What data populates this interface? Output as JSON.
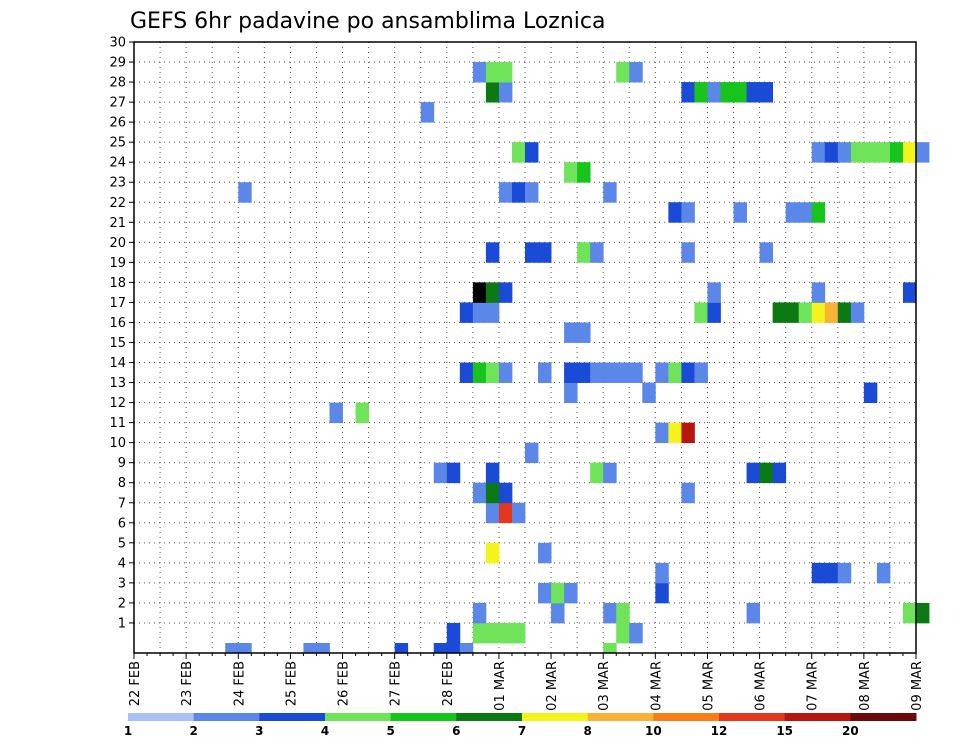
{
  "chart_data": {
    "type": "heatmap",
    "title": "GEFS 6hr padavine po ansamblima Loznica",
    "xlabel": "",
    "ylabel": "",
    "x_tick_labels": [
      "22 FEB",
      "23 FEB",
      "24 FEB",
      "25 FEB",
      "26 FEB",
      "27 FEB",
      "28 FEB",
      "01 MAR",
      "02 MAR",
      "03 MAR",
      "04 MAR",
      "05 MAR",
      "06 MAR",
      "07 MAR",
      "08 MAR",
      "09 MAR"
    ],
    "y_tick_labels": [
      "1",
      "2",
      "3",
      "4",
      "5",
      "6",
      "7",
      "8",
      "9",
      "10",
      "11",
      "12",
      "13",
      "14",
      "15",
      "16",
      "17",
      "18",
      "19",
      "20",
      "21",
      "22",
      "23",
      "24",
      "25",
      "26",
      "27",
      "28",
      "29",
      "30"
    ],
    "ylim": [
      0,
      30
    ],
    "grid": true,
    "colorbar": {
      "labels": [
        "1",
        "2",
        "3",
        "4",
        "5",
        "6",
        "7",
        "8",
        "10",
        "12",
        "15",
        "20"
      ],
      "colors": [
        "#a9c1f5",
        "#5b87e8",
        "#1a4bd6",
        "#6fe35a",
        "#17c41b",
        "#0b7a12",
        "#f4f41b",
        "#f9b236",
        "#f77d14",
        "#e3381a",
        "#b7150f",
        "#6a0a0a"
      ]
    },
    "cells": [
      [
        0,
        7,
        1
      ],
      [
        0,
        8,
        1
      ],
      [
        0,
        13,
        1
      ],
      [
        0,
        14,
        1
      ],
      [
        0,
        20,
        2
      ],
      [
        0,
        23,
        2
      ],
      [
        0,
        24,
        2
      ],
      [
        0,
        25,
        1
      ],
      [
        0,
        36,
        3
      ],
      [
        1,
        24,
        2
      ],
      [
        1,
        26,
        3
      ],
      [
        1,
        27,
        3
      ],
      [
        1,
        28,
        3
      ],
      [
        1,
        29,
        3
      ],
      [
        1,
        37,
        3
      ],
      [
        1,
        38,
        1
      ],
      [
        2,
        26,
        1
      ],
      [
        2,
        32,
        1
      ],
      [
        2,
        36,
        1
      ],
      [
        2,
        37,
        3
      ],
      [
        2,
        47,
        1
      ],
      [
        2,
        59,
        3
      ],
      [
        2,
        60,
        5
      ],
      [
        3,
        31,
        1
      ],
      [
        3,
        32,
        3
      ],
      [
        3,
        33,
        1
      ],
      [
        3,
        40,
        2
      ],
      [
        4,
        40,
        1
      ],
      [
        4,
        52,
        2
      ],
      [
        4,
        53,
        2
      ],
      [
        4,
        54,
        1
      ],
      [
        4,
        57,
        1
      ],
      [
        5,
        27,
        6
      ],
      [
        5,
        31,
        1
      ],
      [
        7,
        27,
        1
      ],
      [
        7,
        28,
        9
      ],
      [
        7,
        29,
        1
      ],
      [
        8,
        26,
        1
      ],
      [
        8,
        27,
        5
      ],
      [
        8,
        28,
        2
      ],
      [
        8,
        42,
        1
      ],
      [
        9,
        23,
        1
      ],
      [
        9,
        24,
        2
      ],
      [
        9,
        27,
        2
      ],
      [
        9,
        35,
        3
      ],
      [
        9,
        36,
        1
      ],
      [
        9,
        47,
        2
      ],
      [
        9,
        48,
        5
      ],
      [
        9,
        49,
        2
      ],
      [
        10,
        30,
        1
      ],
      [
        11,
        40,
        1
      ],
      [
        11,
        41,
        6
      ],
      [
        11,
        42,
        10
      ],
      [
        12,
        15,
        1
      ],
      [
        12,
        17,
        3
      ],
      [
        13,
        33,
        1
      ],
      [
        13,
        39,
        1
      ],
      [
        13,
        56,
        2
      ],
      [
        14,
        25,
        2
      ],
      [
        14,
        26,
        4
      ],
      [
        14,
        27,
        3
      ],
      [
        14,
        28,
        1
      ],
      [
        14,
        31,
        1
      ],
      [
        14,
        33,
        2
      ],
      [
        14,
        34,
        2
      ],
      [
        14,
        35,
        1
      ],
      [
        14,
        36,
        1
      ],
      [
        14,
        37,
        1
      ],
      [
        14,
        38,
        1
      ],
      [
        14,
        40,
        1
      ],
      [
        14,
        41,
        3
      ],
      [
        14,
        42,
        2
      ],
      [
        14,
        43,
        1
      ],
      [
        16,
        33,
        1
      ],
      [
        16,
        34,
        1
      ],
      [
        17,
        25,
        2
      ],
      [
        17,
        26,
        1
      ],
      [
        17,
        27,
        1
      ],
      [
        17,
        43,
        3
      ],
      [
        17,
        44,
        2
      ],
      [
        17,
        49,
        5
      ],
      [
        17,
        50,
        5
      ],
      [
        17,
        51,
        3
      ],
      [
        17,
        52,
        6
      ],
      [
        17,
        53,
        7
      ],
      [
        17,
        54,
        5
      ],
      [
        17,
        55,
        1
      ],
      [
        18,
        26,
        15
      ],
      [
        18,
        27,
        5
      ],
      [
        18,
        28,
        2
      ],
      [
        18,
        44,
        1
      ],
      [
        18,
        52,
        1
      ],
      [
        18,
        59,
        2
      ],
      [
        20,
        27,
        2
      ],
      [
        20,
        30,
        2
      ],
      [
        20,
        31,
        2
      ],
      [
        20,
        34,
        3
      ],
      [
        20,
        35,
        1
      ],
      [
        20,
        42,
        1
      ],
      [
        20,
        48,
        1
      ],
      [
        22,
        41,
        2
      ],
      [
        22,
        42,
        1
      ],
      [
        22,
        46,
        1
      ],
      [
        22,
        50,
        1
      ],
      [
        22,
        51,
        1
      ],
      [
        22,
        52,
        4
      ],
      [
        23,
        8,
        1
      ],
      [
        23,
        28,
        1
      ],
      [
        23,
        29,
        2
      ],
      [
        23,
        30,
        1
      ],
      [
        23,
        36,
        1
      ],
      [
        24,
        33,
        3
      ],
      [
        24,
        34,
        4
      ],
      [
        25,
        29,
        3
      ],
      [
        25,
        30,
        2
      ],
      [
        25,
        52,
        1
      ],
      [
        25,
        53,
        2
      ],
      [
        25,
        54,
        1
      ],
      [
        25,
        55,
        3
      ],
      [
        25,
        56,
        3
      ],
      [
        25,
        57,
        3
      ],
      [
        25,
        58,
        4
      ],
      [
        25,
        59,
        6
      ],
      [
        25,
        60,
        1
      ],
      [
        27,
        22,
        1
      ],
      [
        28,
        27,
        5
      ],
      [
        28,
        28,
        1
      ],
      [
        28,
        42,
        2
      ],
      [
        28,
        43,
        4
      ],
      [
        28,
        44,
        1
      ],
      [
        28,
        45,
        4
      ],
      [
        28,
        46,
        4
      ],
      [
        28,
        47,
        2
      ],
      [
        28,
        48,
        2
      ],
      [
        29,
        26,
        1
      ],
      [
        29,
        27,
        3
      ],
      [
        29,
        28,
        3
      ],
      [
        29,
        37,
        3
      ],
      [
        29,
        38,
        1
      ]
    ]
  }
}
